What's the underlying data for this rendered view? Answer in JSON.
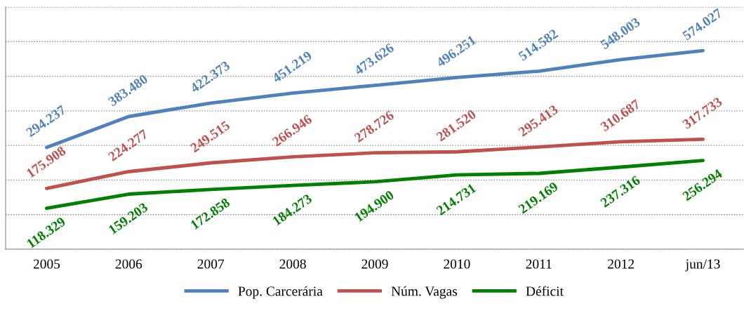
{
  "chart_data": {
    "type": "line",
    "categories": [
      "2005",
      "2006",
      "2007",
      "2008",
      "2009",
      "2010",
      "2011",
      "2012",
      "jun/13"
    ],
    "series": [
      {
        "name": "Pop. Carcerária",
        "color": "#4f81bd",
        "values": [
          294237,
          383480,
          422373,
          451219,
          473626,
          496251,
          514582,
          548003,
          574027
        ],
        "value_labels": [
          "294.237",
          "383.480",
          "422.373",
          "451.219",
          "473.626",
          "496.251",
          "514.582",
          "548.003",
          "574.027"
        ]
      },
      {
        "name": "Núm. Vagas",
        "color": "#c0504d",
        "values": [
          175908,
          224277,
          249515,
          266946,
          278726,
          281520,
          295413,
          310687,
          317733
        ],
        "value_labels": [
          "175.908",
          "224.277",
          "249.515",
          "266.946",
          "278.726",
          "281.520",
          "295.413",
          "310.687",
          "317.733"
        ]
      },
      {
        "name": "Déficit",
        "color": "#008000",
        "values": [
          118329,
          159203,
          172858,
          184273,
          194900,
          214731,
          219169,
          237316,
          256294
        ],
        "value_labels": [
          "118.329",
          "159.203",
          "172.858",
          "184.273",
          "194.900",
          "214.731",
          "219.169",
          "237.316",
          "256.294"
        ]
      }
    ],
    "ylim": [
      0,
      700000
    ],
    "yticks": [
      {
        "value": 0,
        "label": null
      },
      {
        "value": 100000,
        "label": null
      },
      {
        "value": 200000,
        "label": null
      },
      {
        "value": 300000,
        "label": null
      },
      {
        "value": 400000,
        "label": null
      },
      {
        "value": 500000,
        "label": null
      },
      {
        "value": 600000,
        "label": null
      },
      {
        "value": 700000,
        "label": null
      }
    ],
    "tick_labels": "x",
    "grid": "y",
    "legend": "bottom",
    "marker": "none",
    "line_style": "solid"
  }
}
